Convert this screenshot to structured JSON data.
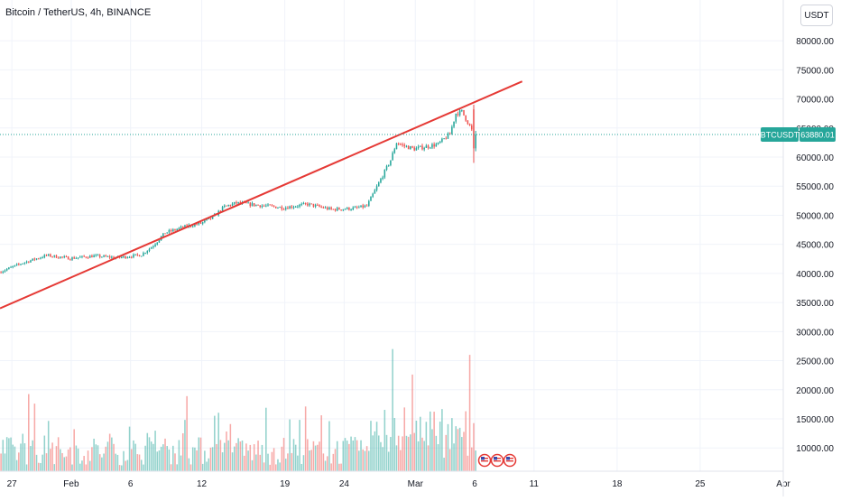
{
  "header": {
    "title": "Bitcoin / TetherUS, 4h, BINANCE",
    "currency_button": "USDT"
  },
  "colors": {
    "up": "#26a69a",
    "down": "#ef5350",
    "trendline": "#e53935",
    "grid": "#f0f3fa",
    "axis_text": "#131722",
    "price_tag": "#26a69a"
  },
  "chart_data": {
    "type": "candlestick",
    "title": "Bitcoin / TetherUS, 4h, BINANCE",
    "symbol": "BTCUSDT",
    "interval": "4h",
    "exchange": "BINANCE",
    "quote_currency": "USDT",
    "last_price": 63880.01,
    "ylim": [
      6000,
      87000
    ],
    "y_ticks": [
      10000,
      15000,
      20000,
      25000,
      30000,
      35000,
      40000,
      45000,
      50000,
      55000,
      60000,
      65000,
      70000,
      75000,
      80000
    ],
    "y_tick_labels": [
      "10000.00",
      "15000.00",
      "20000.00",
      "25000.00",
      "30000.00",
      "35000.00",
      "40000.00",
      "45000.00",
      "50000.00",
      "55000.00",
      "60000.00",
      "65000.00",
      "70000.00",
      "75000.00",
      "80000.00"
    ],
    "x_start": "2024-01-26",
    "x_end": "2024-04-01",
    "x_ticks": [
      {
        "date": "2024-01-27",
        "label": "27"
      },
      {
        "date": "2024-02-01",
        "label": "Feb"
      },
      {
        "date": "2024-02-06",
        "label": "6"
      },
      {
        "date": "2024-02-12",
        "label": "12"
      },
      {
        "date": "2024-02-19",
        "label": "19"
      },
      {
        "date": "2024-02-24",
        "label": "24"
      },
      {
        "date": "2024-03-01",
        "label": "Mar"
      },
      {
        "date": "2024-03-06",
        "label": "6"
      },
      {
        "date": "2024-03-11",
        "label": "11"
      },
      {
        "date": "2024-03-18",
        "label": "18"
      },
      {
        "date": "2024-03-25",
        "label": "25"
      },
      {
        "date": "2024-04-01",
        "label": "Apr"
      }
    ],
    "price_path": [
      [
        "2024-01-26",
        40200
      ],
      [
        "2024-01-28",
        41800
      ],
      [
        "2024-01-30",
        43100
      ],
      [
        "2024-02-01",
        42600
      ],
      [
        "2024-02-03",
        43000
      ],
      [
        "2024-02-05",
        42700
      ],
      [
        "2024-02-07",
        43200
      ],
      [
        "2024-02-08",
        44800
      ],
      [
        "2024-02-09",
        47000
      ],
      [
        "2024-02-10",
        47600
      ],
      [
        "2024-02-11",
        48200
      ],
      [
        "2024-02-12",
        48600
      ],
      [
        "2024-02-13",
        49600
      ],
      [
        "2024-02-14",
        51500
      ],
      [
        "2024-02-15",
        52100
      ],
      [
        "2024-02-17",
        51700
      ],
      [
        "2024-02-19",
        51300
      ],
      [
        "2024-02-21",
        51900
      ],
      [
        "2024-02-23",
        51000
      ],
      [
        "2024-02-25",
        51200
      ],
      [
        "2024-02-26",
        51600
      ],
      [
        "2024-02-27",
        55500
      ],
      [
        "2024-02-28",
        59500
      ],
      [
        "2024-02-28T12:00",
        62500
      ],
      [
        "2024-02-29",
        62000
      ],
      [
        "2024-03-01",
        61400
      ],
      [
        "2024-03-02",
        61800
      ],
      [
        "2024-03-03",
        62200
      ],
      [
        "2024-03-04",
        64000
      ],
      [
        "2024-03-04T12:00",
        67500
      ],
      [
        "2024-03-05",
        67800
      ],
      [
        "2024-03-05T12:00",
        66000
      ],
      [
        "2024-03-06",
        63880
      ]
    ],
    "volume_spikes": [
      {
        "date": "2024-02-28",
        "value": 27000
      },
      {
        "date": "2024-03-05T12:00",
        "value": 26000
      }
    ],
    "trendline": {
      "color": "red",
      "points": [
        [
          "2024-01-26",
          34000
        ],
        [
          "2024-03-10",
          73000
        ]
      ]
    },
    "event_markers": [
      {
        "date": "2024-03-06",
        "icon": "us-flag-icon"
      },
      {
        "date": "2024-03-07",
        "icon": "us-flag-icon"
      },
      {
        "date": "2024-03-08",
        "icon": "us-flag-icon"
      }
    ],
    "price_tag": {
      "symbol_label": "BTCUSDT",
      "value_label": "63880.01"
    },
    "grid": true,
    "legend": "none"
  }
}
